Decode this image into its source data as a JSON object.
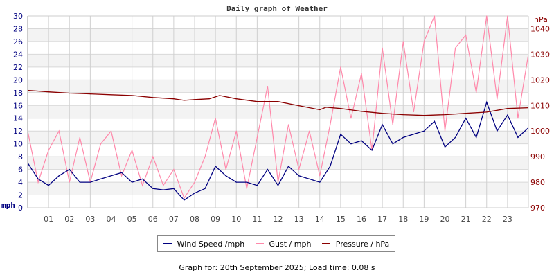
{
  "chart_data": {
    "type": "line",
    "title": "Daily graph of Weather",
    "x_tick_labels": [
      "01",
      "02",
      "03",
      "04",
      "05",
      "06",
      "07",
      "08",
      "09",
      "10",
      "11",
      "12",
      "13",
      "14",
      "15",
      "16",
      "17",
      "18",
      "19",
      "20",
      "21",
      "22",
      "23"
    ],
    "xlim_hours": [
      0,
      24
    ],
    "left_axis": {
      "label": "mph",
      "ylim": [
        0,
        30
      ],
      "ticks": [
        0,
        2,
        4,
        6,
        8,
        10,
        12,
        14,
        16,
        18,
        20,
        22,
        24,
        26,
        28,
        30
      ],
      "color": "#000080"
    },
    "right_axis": {
      "label": "hPa",
      "ylim": [
        970,
        1045
      ],
      "ticks": [
        970,
        980,
        990,
        1000,
        1010,
        1020,
        1030,
        1040
      ],
      "color": "#8b0000"
    },
    "grid": true,
    "legend_placement": "bottom",
    "series": [
      {
        "name": "Wind Speed /mph",
        "axis": "left",
        "color": "#000080",
        "x": [
          0,
          0.5,
          1,
          1.5,
          2,
          2.5,
          3,
          3.5,
          4,
          4.5,
          5,
          5.5,
          6,
          6.5,
          7,
          7.5,
          8,
          8.5,
          9,
          9.5,
          10,
          10.5,
          11,
          11.5,
          12,
          12.5,
          13,
          13.5,
          14,
          14.5,
          15,
          15.5,
          16,
          16.5,
          17,
          17.5,
          18,
          18.5,
          19,
          19.5,
          20,
          20.5,
          21,
          21.5,
          22,
          22.5,
          23,
          23.5,
          24
        ],
        "values": [
          7,
          4.5,
          3.5,
          5,
          6,
          4,
          4,
          4.5,
          5,
          5.5,
          4,
          4.5,
          3,
          2.8,
          3,
          1.2,
          2.3,
          3,
          6.5,
          5,
          4,
          4,
          3.5,
          6,
          3.5,
          6.5,
          5,
          4.5,
          4,
          6.5,
          11.5,
          10,
          10.5,
          9,
          13,
          10,
          11,
          11.5,
          12,
          13.5,
          9.5,
          11,
          14,
          11,
          16.5,
          12,
          14.5,
          11,
          12.5
        ]
      },
      {
        "name": "Gust / mph",
        "axis": "left",
        "color": "#ff88aa",
        "x": [
          0,
          0.5,
          1,
          1.5,
          2,
          2.5,
          3,
          3.5,
          4,
          4.5,
          5,
          5.5,
          6,
          6.5,
          7,
          7.5,
          8,
          8.5,
          9,
          9.5,
          10,
          10.5,
          11,
          11.5,
          12,
          12.5,
          13,
          13.5,
          14,
          14.5,
          15,
          15.5,
          16,
          16.5,
          17,
          17.5,
          18,
          18.5,
          19,
          19.5,
          20,
          20.5,
          21,
          21.5,
          22,
          22.5,
          23,
          23.5,
          24
        ],
        "values": [
          12,
          4,
          9,
          12,
          4,
          11,
          4,
          10,
          12,
          5,
          9,
          3.5,
          8,
          3.5,
          6,
          1.5,
          4,
          8,
          14,
          6,
          12,
          3,
          11,
          19,
          4,
          13,
          6,
          12,
          5,
          13,
          22,
          14,
          21,
          9,
          25,
          13,
          26,
          15,
          26,
          30,
          12,
          25,
          27,
          18,
          30,
          17,
          30,
          14,
          24
        ]
      },
      {
        "name": "Pressure / hPa",
        "axis": "right",
        "color": "#8b0000",
        "x": [
          0,
          1,
          2,
          3,
          4,
          5,
          6,
          7,
          7.5,
          8,
          8.7,
          9.2,
          10,
          11,
          12,
          13,
          14,
          14.3,
          15,
          16,
          17,
          18,
          19,
          20,
          21,
          22,
          23,
          24
        ],
        "values": [
          1015.9,
          1015.3,
          1014.8,
          1014.5,
          1014.2,
          1013.9,
          1013.1,
          1012.6,
          1012,
          1012.3,
          1012.6,
          1013.9,
          1012.6,
          1011.5,
          1011.5,
          1009.9,
          1008.3,
          1009.3,
          1008.8,
          1007.7,
          1006.9,
          1006.4,
          1006.1,
          1006.4,
          1006.9,
          1007.4,
          1008.8,
          1009.1
        ]
      }
    ]
  },
  "footer": "Graph for: 20th September 2025; Load time: 0.08 s"
}
